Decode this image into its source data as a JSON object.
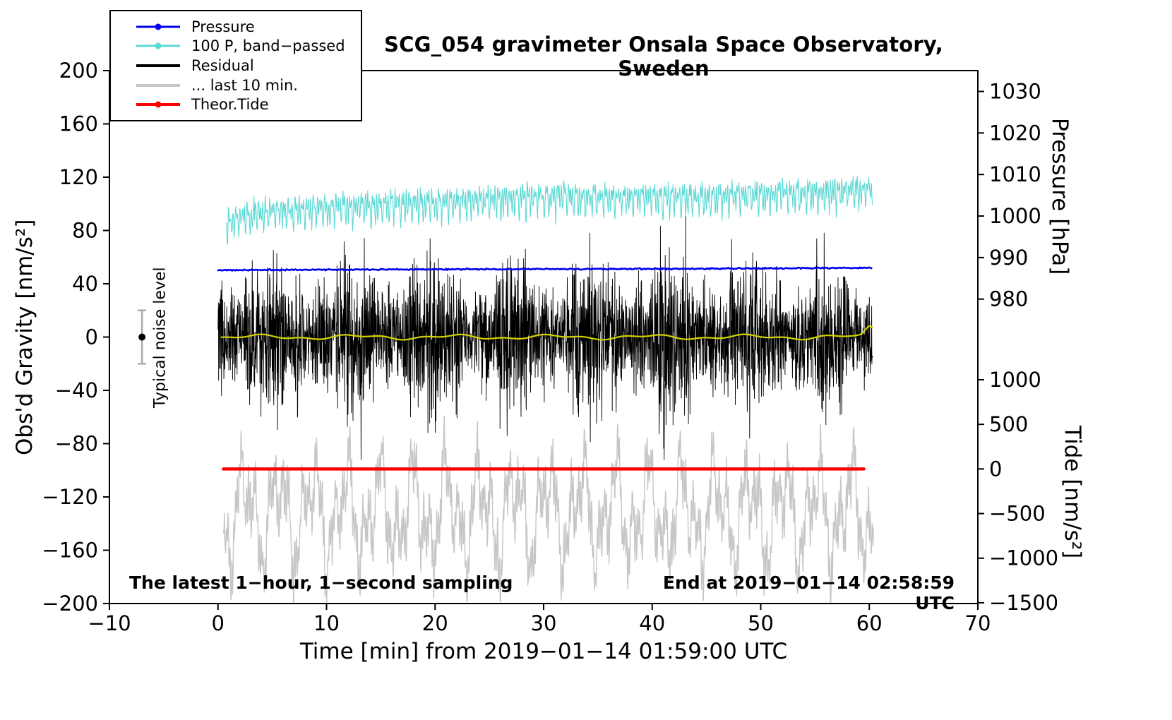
{
  "chart_data": {
    "type": "line",
    "title": "SCG_054 gravimeter Onsala Space Observatory, Sweden",
    "xlabel": "Time [min] from 2019−01−14 01:59:00 UTC",
    "ylabel_left": "Obs'd Gravity [nm/s²]",
    "ylabel_pressure": "Pressure [hPa]",
    "ylabel_tide": "Tide [nm/s²]",
    "annotations": {
      "sampling_note": "The latest 1−hour, 1−second sampling",
      "end_note": "End at 2019−01−14 02:58:59 UTC",
      "noise_label": "Typical noise level",
      "noise_marker": {
        "x": -7,
        "gravity": 0,
        "half_range": 20
      }
    },
    "axes": {
      "x": {
        "min": -10,
        "max": 70,
        "ticks": [
          -10,
          0,
          10,
          20,
          30,
          40,
          50,
          60,
          70
        ],
        "unit": "min"
      },
      "y_left": {
        "min": -200,
        "max": 200,
        "ticks": [
          -200,
          -160,
          -120,
          -80,
          -40,
          0,
          40,
          80,
          120,
          160,
          200
        ],
        "unit": "nm/s²"
      },
      "y_right_pressure": {
        "unit": "hPa",
        "ticks": [
          980,
          990,
          1000,
          1010,
          1020,
          1030
        ],
        "ref_value": 980,
        "ref_gravity": 28.5,
        "gravity_per_unit": 3.117
      },
      "y_right_tide": {
        "unit": "nm/s²",
        "ticks": [
          -1500,
          -1000,
          -500,
          0,
          500,
          1000
        ],
        "ref_value": 0,
        "ref_gravity": -99,
        "gravity_per_unit": 0.06696
      }
    },
    "legend": [
      {
        "label": "Pressure",
        "color": "#0000ee",
        "dot": true,
        "thick": false
      },
      {
        "label": "100 P, band−passed",
        "color": "#5bd8d4",
        "dot": true,
        "thick": false
      },
      {
        "label": "Residual",
        "color": "#000000",
        "dot": false,
        "thick": true
      },
      {
        "label": "... last 10 min.",
        "color": "#c6c6c6",
        "dot": false,
        "thick": true
      },
      {
        "label": "Theor.Tide",
        "color": "#ff0000",
        "dot": true,
        "thick": true
      }
    ],
    "series": [
      {
        "name": "Residual",
        "kind": "residual",
        "color": "#000000",
        "width": 0.9,
        "x_start": 0,
        "x_end": 60.3,
        "step": 0.02,
        "base": 0,
        "noise_amp": 46,
        "spike_prob": 0.004,
        "spike_mult": 1.8,
        "clamp": [
          -92,
          97
        ],
        "seed": 33
      },
      {
        "name": "... last 10 min.",
        "kind": "slow_noise",
        "color": "#c6c6c6",
        "width": 1.4,
        "x_start": 0.5,
        "x_end": 60.4,
        "step": 0.03,
        "base": -132,
        "slow_periods": [
          3.1,
          1.45,
          0.62
        ],
        "slow_amps": [
          26,
          20,
          14
        ],
        "fast_period": 0.17,
        "fast_amp": 16,
        "noise_amp": 7,
        "clamp": [
          -206,
          -58
        ],
        "seed": 55
      },
      {
        "name": "100 P, band−passed",
        "kind": "bandpassed",
        "color": "#5bd8d4",
        "width": 1.1,
        "x_start": 0.8,
        "x_end": 60.3,
        "step": 0.04,
        "base_points": [
          [
            0.8,
            87
          ],
          [
            4,
            93
          ],
          [
            8,
            95
          ],
          [
            12,
            97
          ],
          [
            16,
            99
          ],
          [
            20,
            100
          ],
          [
            24,
            102
          ],
          [
            28,
            104
          ],
          [
            32,
            105
          ],
          [
            36,
            104
          ],
          [
            40,
            105
          ],
          [
            44,
            104
          ],
          [
            48,
            106
          ],
          [
            52,
            107
          ],
          [
            56,
            108
          ],
          [
            60.3,
            111
          ]
        ],
        "osc_periods": [
          0.21,
          0.34,
          0.55
        ],
        "osc_amp": 6.5,
        "noise_amp": 5,
        "seed": 22
      },
      {
        "name": "Pressure",
        "kind": "drift",
        "color": "#0000ee",
        "width": 2.6,
        "x_start": 0,
        "x_end": 60.2,
        "step": 0.1,
        "base_points": [
          [
            0,
            50.2
          ],
          [
            15,
            50.8
          ],
          [
            30,
            51.0
          ],
          [
            45,
            51.3
          ],
          [
            60.2,
            52.0
          ]
        ],
        "noise_amp": 0.5,
        "seed": 11,
        "approx_value_hPa": 987
      },
      {
        "name": "Theor.Tide",
        "kind": "flat",
        "color": "#ff0000",
        "width": 4.5,
        "x_start": 0.5,
        "x_end": 60.3,
        "step": 1,
        "gravity_level": -99,
        "tide_value": 0
      },
      {
        "name": "Residual (smoothed)",
        "kind": "smooth",
        "color": "#d2d200",
        "width": 2.2,
        "x_start": 0.3,
        "x_end": 60.3,
        "step": 0.1,
        "base": 0,
        "wiggle_amp": 1.3,
        "end_bump": 8,
        "end_bump_x": 60.1,
        "seed": 44
      }
    ]
  }
}
